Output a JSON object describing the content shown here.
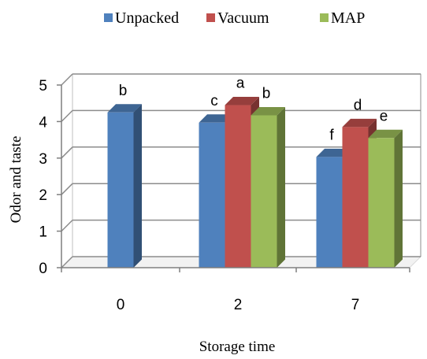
{
  "chart_data": {
    "type": "bar",
    "style": "3d-clustered-column",
    "categories": [
      "0",
      "2",
      "7"
    ],
    "series": [
      {
        "name": "Unpacked",
        "color": "#4f81bd",
        "values": [
          4.25,
          3.97,
          3.03
        ],
        "labels": [
          "b",
          "c",
          "f"
        ]
      },
      {
        "name": "Vacuum",
        "color": "#c0504d",
        "values": [
          null,
          4.45,
          3.85
        ],
        "labels": [
          "",
          "a",
          "d"
        ]
      },
      {
        "name": "MAP",
        "color": "#9bbb59",
        "values": [
          null,
          4.17,
          3.55
        ],
        "labels": [
          "",
          "b",
          "e"
        ]
      }
    ],
    "xlabel": "Storage time",
    "ylabel": "Odor and taste",
    "ylim": [
      0,
      5
    ],
    "yticks": [
      "0",
      "1",
      "2",
      "3",
      "4",
      "5"
    ],
    "grid": true,
    "legend_position": "top"
  }
}
